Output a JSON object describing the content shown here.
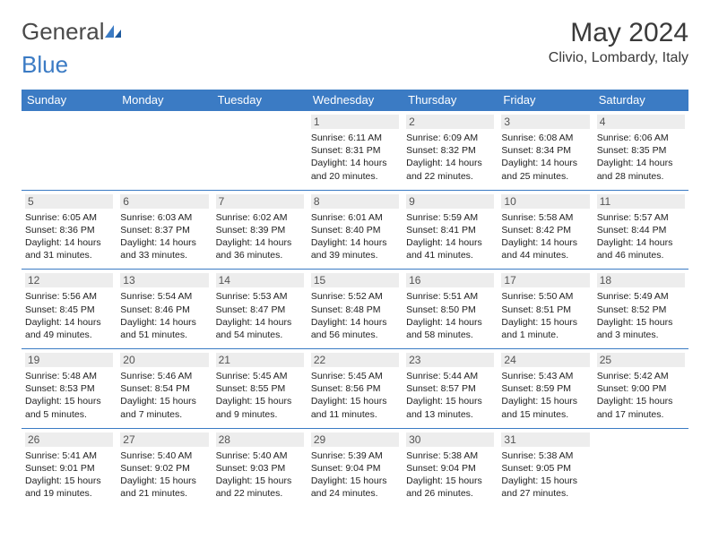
{
  "brand": {
    "part1": "General",
    "part2": "Blue"
  },
  "title": "May 2024",
  "location": "Clivio, Lombardy, Italy",
  "day_headers": [
    "Sunday",
    "Monday",
    "Tuesday",
    "Wednesday",
    "Thursday",
    "Friday",
    "Saturday"
  ],
  "colors": {
    "header_bg": "#3b7bc4",
    "header_fg": "#ffffff",
    "border": "#3b7bc4",
    "daynum_bg": "#ededed",
    "text": "#222222",
    "logo_blue": "#3b7bc4"
  },
  "weeks": [
    [
      {
        "n": "",
        "empty": true
      },
      {
        "n": "",
        "empty": true
      },
      {
        "n": "",
        "empty": true
      },
      {
        "n": "1",
        "sr": "6:11 AM",
        "ss": "8:31 PM",
        "dl": "14 hours and 20 minutes."
      },
      {
        "n": "2",
        "sr": "6:09 AM",
        "ss": "8:32 PM",
        "dl": "14 hours and 22 minutes."
      },
      {
        "n": "3",
        "sr": "6:08 AM",
        "ss": "8:34 PM",
        "dl": "14 hours and 25 minutes."
      },
      {
        "n": "4",
        "sr": "6:06 AM",
        "ss": "8:35 PM",
        "dl": "14 hours and 28 minutes."
      }
    ],
    [
      {
        "n": "5",
        "sr": "6:05 AM",
        "ss": "8:36 PM",
        "dl": "14 hours and 31 minutes."
      },
      {
        "n": "6",
        "sr": "6:03 AM",
        "ss": "8:37 PM",
        "dl": "14 hours and 33 minutes."
      },
      {
        "n": "7",
        "sr": "6:02 AM",
        "ss": "8:39 PM",
        "dl": "14 hours and 36 minutes."
      },
      {
        "n": "8",
        "sr": "6:01 AM",
        "ss": "8:40 PM",
        "dl": "14 hours and 39 minutes."
      },
      {
        "n": "9",
        "sr": "5:59 AM",
        "ss": "8:41 PM",
        "dl": "14 hours and 41 minutes."
      },
      {
        "n": "10",
        "sr": "5:58 AM",
        "ss": "8:42 PM",
        "dl": "14 hours and 44 minutes."
      },
      {
        "n": "11",
        "sr": "5:57 AM",
        "ss": "8:44 PM",
        "dl": "14 hours and 46 minutes."
      }
    ],
    [
      {
        "n": "12",
        "sr": "5:56 AM",
        "ss": "8:45 PM",
        "dl": "14 hours and 49 minutes."
      },
      {
        "n": "13",
        "sr": "5:54 AM",
        "ss": "8:46 PM",
        "dl": "14 hours and 51 minutes."
      },
      {
        "n": "14",
        "sr": "5:53 AM",
        "ss": "8:47 PM",
        "dl": "14 hours and 54 minutes."
      },
      {
        "n": "15",
        "sr": "5:52 AM",
        "ss": "8:48 PM",
        "dl": "14 hours and 56 minutes."
      },
      {
        "n": "16",
        "sr": "5:51 AM",
        "ss": "8:50 PM",
        "dl": "14 hours and 58 minutes."
      },
      {
        "n": "17",
        "sr": "5:50 AM",
        "ss": "8:51 PM",
        "dl": "15 hours and 1 minute."
      },
      {
        "n": "18",
        "sr": "5:49 AM",
        "ss": "8:52 PM",
        "dl": "15 hours and 3 minutes."
      }
    ],
    [
      {
        "n": "19",
        "sr": "5:48 AM",
        "ss": "8:53 PM",
        "dl": "15 hours and 5 minutes."
      },
      {
        "n": "20",
        "sr": "5:46 AM",
        "ss": "8:54 PM",
        "dl": "15 hours and 7 minutes."
      },
      {
        "n": "21",
        "sr": "5:45 AM",
        "ss": "8:55 PM",
        "dl": "15 hours and 9 minutes."
      },
      {
        "n": "22",
        "sr": "5:45 AM",
        "ss": "8:56 PM",
        "dl": "15 hours and 11 minutes."
      },
      {
        "n": "23",
        "sr": "5:44 AM",
        "ss": "8:57 PM",
        "dl": "15 hours and 13 minutes."
      },
      {
        "n": "24",
        "sr": "5:43 AM",
        "ss": "8:59 PM",
        "dl": "15 hours and 15 minutes."
      },
      {
        "n": "25",
        "sr": "5:42 AM",
        "ss": "9:00 PM",
        "dl": "15 hours and 17 minutes."
      }
    ],
    [
      {
        "n": "26",
        "sr": "5:41 AM",
        "ss": "9:01 PM",
        "dl": "15 hours and 19 minutes."
      },
      {
        "n": "27",
        "sr": "5:40 AM",
        "ss": "9:02 PM",
        "dl": "15 hours and 21 minutes."
      },
      {
        "n": "28",
        "sr": "5:40 AM",
        "ss": "9:03 PM",
        "dl": "15 hours and 22 minutes."
      },
      {
        "n": "29",
        "sr": "5:39 AM",
        "ss": "9:04 PM",
        "dl": "15 hours and 24 minutes."
      },
      {
        "n": "30",
        "sr": "5:38 AM",
        "ss": "9:04 PM",
        "dl": "15 hours and 26 minutes."
      },
      {
        "n": "31",
        "sr": "5:38 AM",
        "ss": "9:05 PM",
        "dl": "15 hours and 27 minutes."
      },
      {
        "n": "",
        "empty": true
      }
    ]
  ],
  "labels": {
    "sunrise": "Sunrise: ",
    "sunset": "Sunset: ",
    "daylight": "Daylight: "
  }
}
